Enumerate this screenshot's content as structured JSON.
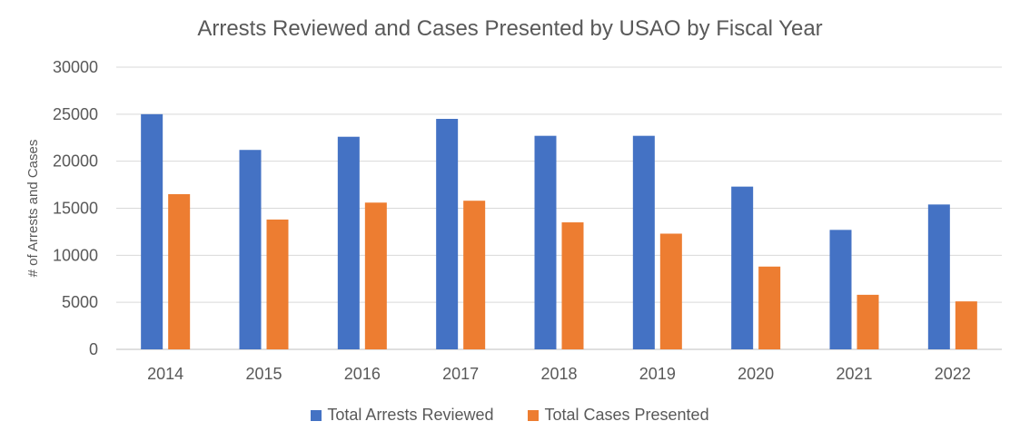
{
  "chart_data": {
    "type": "bar",
    "title": "Arrests Reviewed and Cases Presented by USAO by Fiscal Year",
    "xlabel": "",
    "ylabel": "# of Arrests and Cases",
    "ylim": [
      0,
      30000
    ],
    "yticks": [
      0,
      5000,
      10000,
      15000,
      20000,
      25000,
      30000
    ],
    "grid": true,
    "legend_position": "bottom",
    "categories": [
      "2014",
      "2015",
      "2016",
      "2017",
      "2018",
      "2019",
      "2020",
      "2021",
      "2022"
    ],
    "series": [
      {
        "name": "Total Arrests Reviewed",
        "color": "#4472C4",
        "values": [
          25000,
          21200,
          22600,
          24500,
          22700,
          22700,
          17300,
          12700,
          15400
        ]
      },
      {
        "name": "Total Cases Presented",
        "color": "#ED7D31",
        "values": [
          16500,
          13800,
          15600,
          15800,
          13500,
          12300,
          8800,
          5800,
          5100
        ]
      }
    ]
  }
}
